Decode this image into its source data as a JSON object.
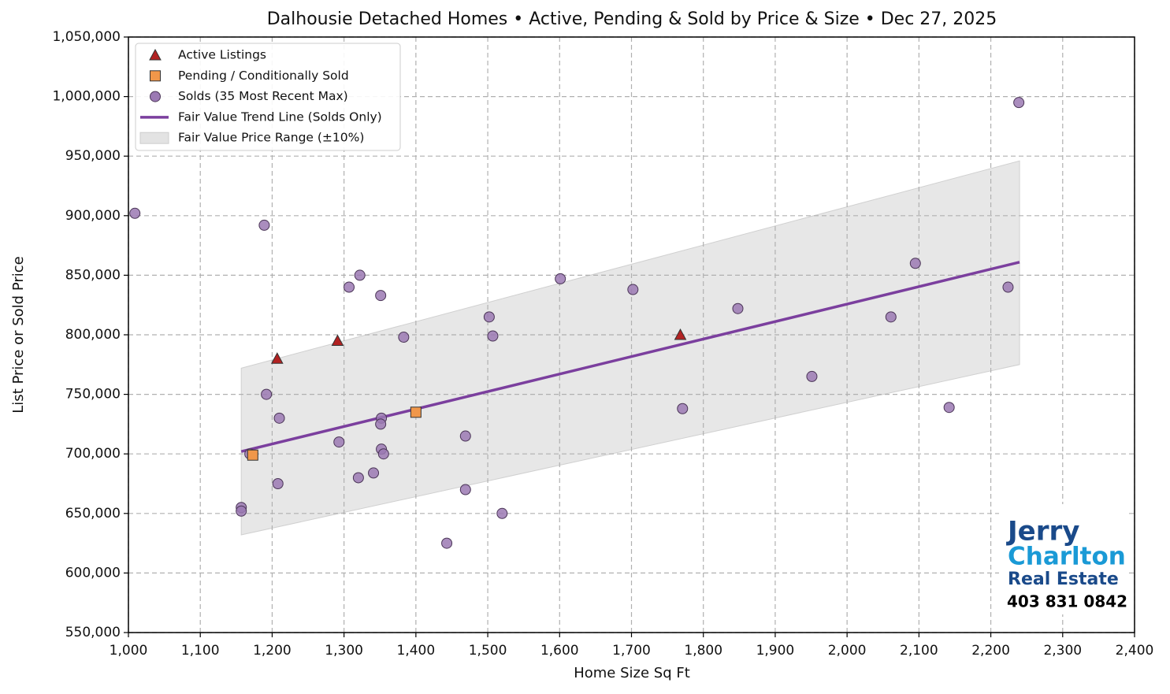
{
  "chart_data": {
    "type": "scatter",
    "title": "Dalhousie Detached Homes • Active, Pending & Sold by Price & Size • Dec 27, 2025",
    "x_label": "Home Size Sq Ft",
    "y_label": "List Price or Sold Price",
    "xlim": [
      1000,
      2400
    ],
    "ylim": [
      550000,
      1050000
    ],
    "xticks": [
      {
        "value": 1000,
        "label": "1,000"
      },
      {
        "value": 1100,
        "label": "1,100"
      },
      {
        "value": 1200,
        "label": "1,200"
      },
      {
        "value": 1300,
        "label": "1,300"
      },
      {
        "value": 1400,
        "label": "1,400"
      },
      {
        "value": 1500,
        "label": "1,500"
      },
      {
        "value": 1600,
        "label": "1,600"
      },
      {
        "value": 1700,
        "label": "1,700"
      },
      {
        "value": 1800,
        "label": "1,800"
      },
      {
        "value": 1900,
        "label": "1,900"
      },
      {
        "value": 2000,
        "label": "2,000"
      },
      {
        "value": 2100,
        "label": "2,100"
      },
      {
        "value": 2200,
        "label": "2,200"
      },
      {
        "value": 2300,
        "label": "2,300"
      },
      {
        "value": 2400,
        "label": "2,400"
      }
    ],
    "yticks": [
      {
        "value": 550000,
        "label": "550,000"
      },
      {
        "value": 600000,
        "label": "600,000"
      },
      {
        "value": 650000,
        "label": "650,000"
      },
      {
        "value": 700000,
        "label": "700,000"
      },
      {
        "value": 750000,
        "label": "750,000"
      },
      {
        "value": 800000,
        "label": "800,000"
      },
      {
        "value": 850000,
        "label": "850,000"
      },
      {
        "value": 900000,
        "label": "900,000"
      },
      {
        "value": 950000,
        "label": "950,000"
      },
      {
        "value": 1000000,
        "label": "1,000,000"
      },
      {
        "value": 1050000,
        "label": "1,050,000"
      }
    ],
    "grid": true,
    "legend": "upper left",
    "series": [
      {
        "name": "Active Listings",
        "color": "#b22222",
        "marker": "triangle",
        "x": [
          1207,
          1291,
          1768
        ],
        "values": [
          780000,
          795000,
          800000
        ]
      },
      {
        "name": "Pending / Conditionally Sold",
        "color": "#f0974a",
        "marker": "square",
        "x": [
          1173,
          1400
        ],
        "values": [
          699000,
          735000
        ]
      },
      {
        "name": "Solds (35 Most Recent Max)",
        "color": "#9b79b3",
        "marker": "circle",
        "x": [
          1009,
          1189,
          2239,
          1169,
          1157,
          1157,
          1192,
          1210,
          1208,
          1293,
          1307,
          1322,
          1320,
          1341,
          1351,
          1352,
          1351,
          1352,
          1355,
          1383,
          1443,
          1469,
          1469,
          1502,
          1507,
          1520,
          1601,
          1702,
          1771,
          1848,
          1951,
          2061,
          2095,
          2142,
          2224
        ],
        "values": [
          902000,
          892000,
          995000,
          700000,
          655000,
          652000,
          750000,
          730000,
          675000,
          710000,
          840000,
          850000,
          680000,
          684000,
          833000,
          730000,
          725000,
          704000,
          700000,
          798000,
          625000,
          715000,
          670000,
          815000,
          799000,
          650000,
          847000,
          838000,
          738000,
          822000,
          765000,
          815000,
          860000,
          739000,
          840000
        ]
      }
    ],
    "trend": {
      "name": "Fair Value Trend Line (Solds Only)",
      "color": "#7b3f9e",
      "x": [
        1157,
        2240
      ],
      "values": [
        702000,
        861000
      ]
    },
    "band": {
      "name": "Fair Value Price Range (±10%)",
      "color": "#e3e3e3",
      "x": [
        1157,
        2240
      ],
      "lower": [
        632000,
        775000
      ],
      "upper": [
        772000,
        946000
      ]
    },
    "logo": {
      "line1": "Jerry",
      "line2": "Charlton",
      "line3": "Real Estate",
      "phone": "403 831 0842"
    }
  }
}
